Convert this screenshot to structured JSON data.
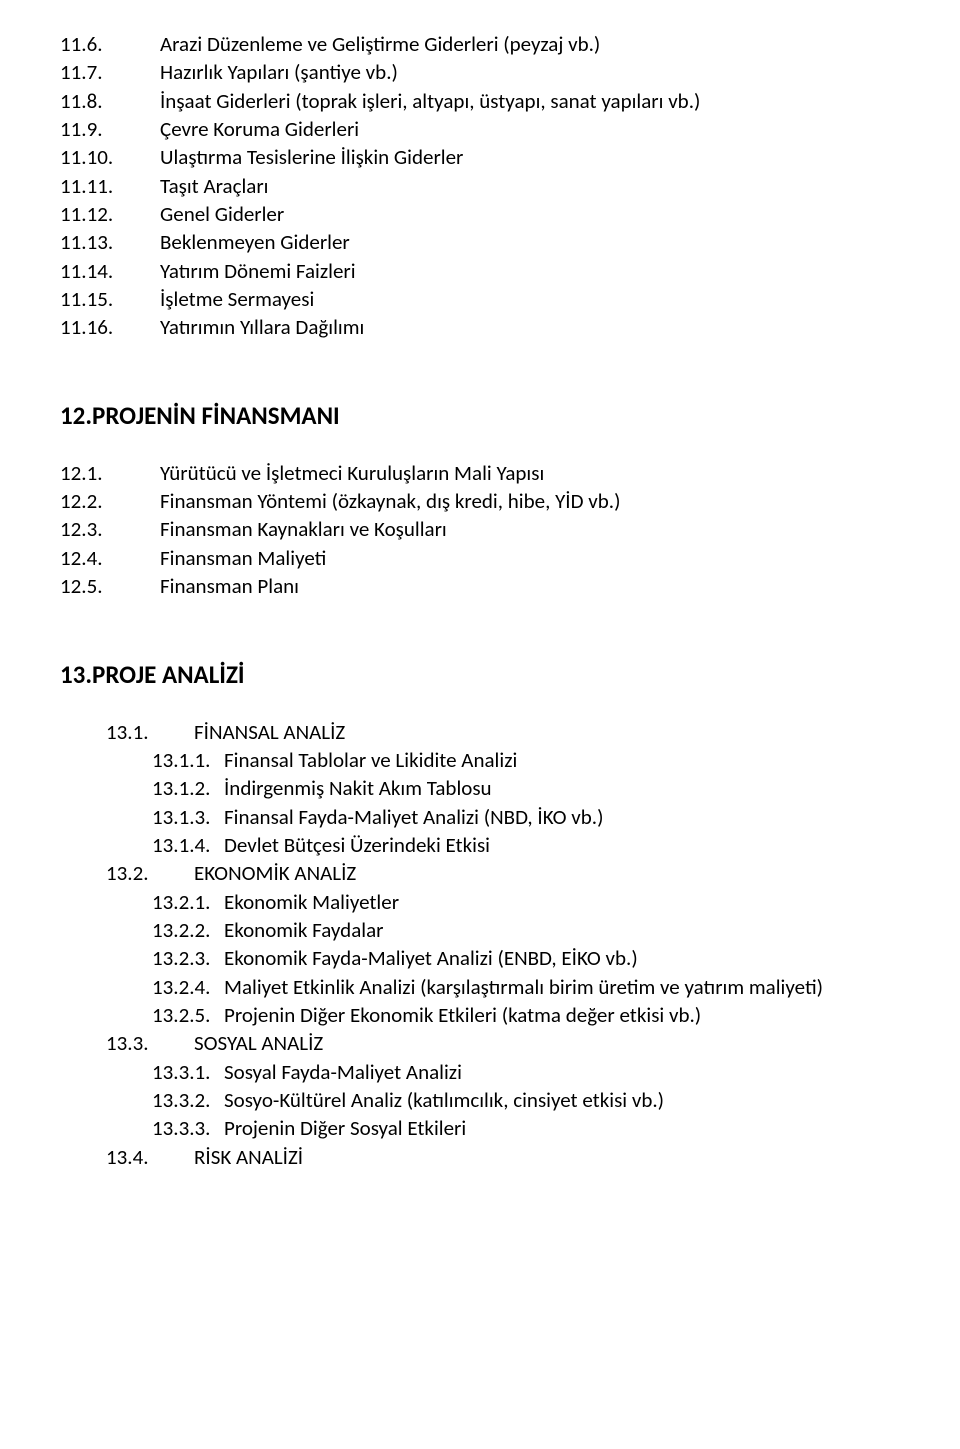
{
  "colors": {
    "text": "#000000",
    "background": "#ffffff"
  },
  "typography": {
    "body_font_family": "Calibri",
    "body_font_size_pt": 16,
    "heading_font_size_pt": 19,
    "heading_weight": "700"
  },
  "sections": {
    "s11": {
      "items": [
        {
          "num": "11.6.",
          "text": "Arazi Düzenleme ve Geliştirme Giderleri (peyzaj vb.)"
        },
        {
          "num": "11.7.",
          "text": "Hazırlık Yapıları (şantiye vb.)"
        },
        {
          "num": "11.8.",
          "text": "İnşaat Giderleri  (toprak işleri, altyapı, üstyapı, sanat yapıları vb.)"
        },
        {
          "num": "11.9.",
          "text": "Çevre Koruma Giderleri"
        },
        {
          "num": "11.10.",
          "text": "Ulaştırma Tesislerine İlişkin Giderler"
        },
        {
          "num": "11.11.",
          "text": "Taşıt Araçları"
        },
        {
          "num": "11.12.",
          "text": "Genel Giderler"
        },
        {
          "num": "11.13.",
          "text": "Beklenmeyen Giderler"
        },
        {
          "num": "11.14.",
          "text": "Yatırım Dönemi Faizleri"
        },
        {
          "num": "11.15.",
          "text": "İşletme Sermayesi"
        },
        {
          "num": "11.16.",
          "text": "Yatırımın Yıllara Dağılımı"
        }
      ]
    },
    "s12": {
      "heading": "12.PROJENİN FİNANSMANI",
      "items": [
        {
          "num": "12.1.",
          "text": "Yürütücü ve İşletmeci Kuruluşların Mali Yapısı"
        },
        {
          "num": "12.2.",
          "text": "Finansman Yöntemi (özkaynak, dış kredi, hibe, YİD vb.)"
        },
        {
          "num": "12.3.",
          "text": "Finansman Kaynakları ve Koşulları"
        },
        {
          "num": "12.4.",
          "text": "Finansman Maliyeti"
        },
        {
          "num": "12.5.",
          "text": "Finansman Planı"
        }
      ]
    },
    "s13": {
      "heading": "13.PROJE ANALİZİ",
      "g1": {
        "head": {
          "num": "13.1.",
          "text": "FİNANSAL ANALİZ"
        },
        "subs": [
          {
            "num": "13.1.1.",
            "text": "Finansal Tablolar ve Likidite Analizi"
          },
          {
            "num": "13.1.2.",
            "text": "İndirgenmiş Nakit Akım Tablosu"
          },
          {
            "num": "13.1.3.",
            "text": "Finansal Fayda-Maliyet Analizi (NBD, İKO vb.)"
          },
          {
            "num": "13.1.4.",
            "text": "Devlet Bütçesi Üzerindeki Etkisi"
          }
        ]
      },
      "g2": {
        "head": {
          "num": "13.2.",
          "text": "EKONOMİK ANALİZ"
        },
        "subs": [
          {
            "num": "13.2.1.",
            "text": "Ekonomik Maliyetler"
          },
          {
            "num": "13.2.2.",
            "text": "Ekonomik Faydalar"
          },
          {
            "num": "13.2.3.",
            "text": "Ekonomik Fayda-Maliyet Analizi (ENBD, EİKO vb.)"
          },
          {
            "num": "13.2.4.",
            "text": "Maliyet Etkinlik Analizi  (karşılaştırmalı birim üretim ve yatırım maliyeti)"
          },
          {
            "num": "13.2.5.",
            "text": "Projenin Diğer Ekonomik Etkileri (katma değer etkisi vb.)"
          }
        ]
      },
      "g3": {
        "head": {
          "num": "13.3.",
          "text": "SOSYAL ANALİZ"
        },
        "subs": [
          {
            "num": "13.3.1.",
            "text": "Sosyal Fayda-Maliyet Analizi"
          },
          {
            "num": "13.3.2.",
            "text": "Sosyo-Kültürel Analiz (katılımcılık, cinsiyet etkisi vb.)"
          },
          {
            "num": "13.3.3.",
            "text": "Projenin Diğer Sosyal Etkileri"
          }
        ]
      },
      "g4": {
        "head": {
          "num": "13.4.",
          "text": "RİSK ANALİZİ"
        }
      }
    }
  }
}
